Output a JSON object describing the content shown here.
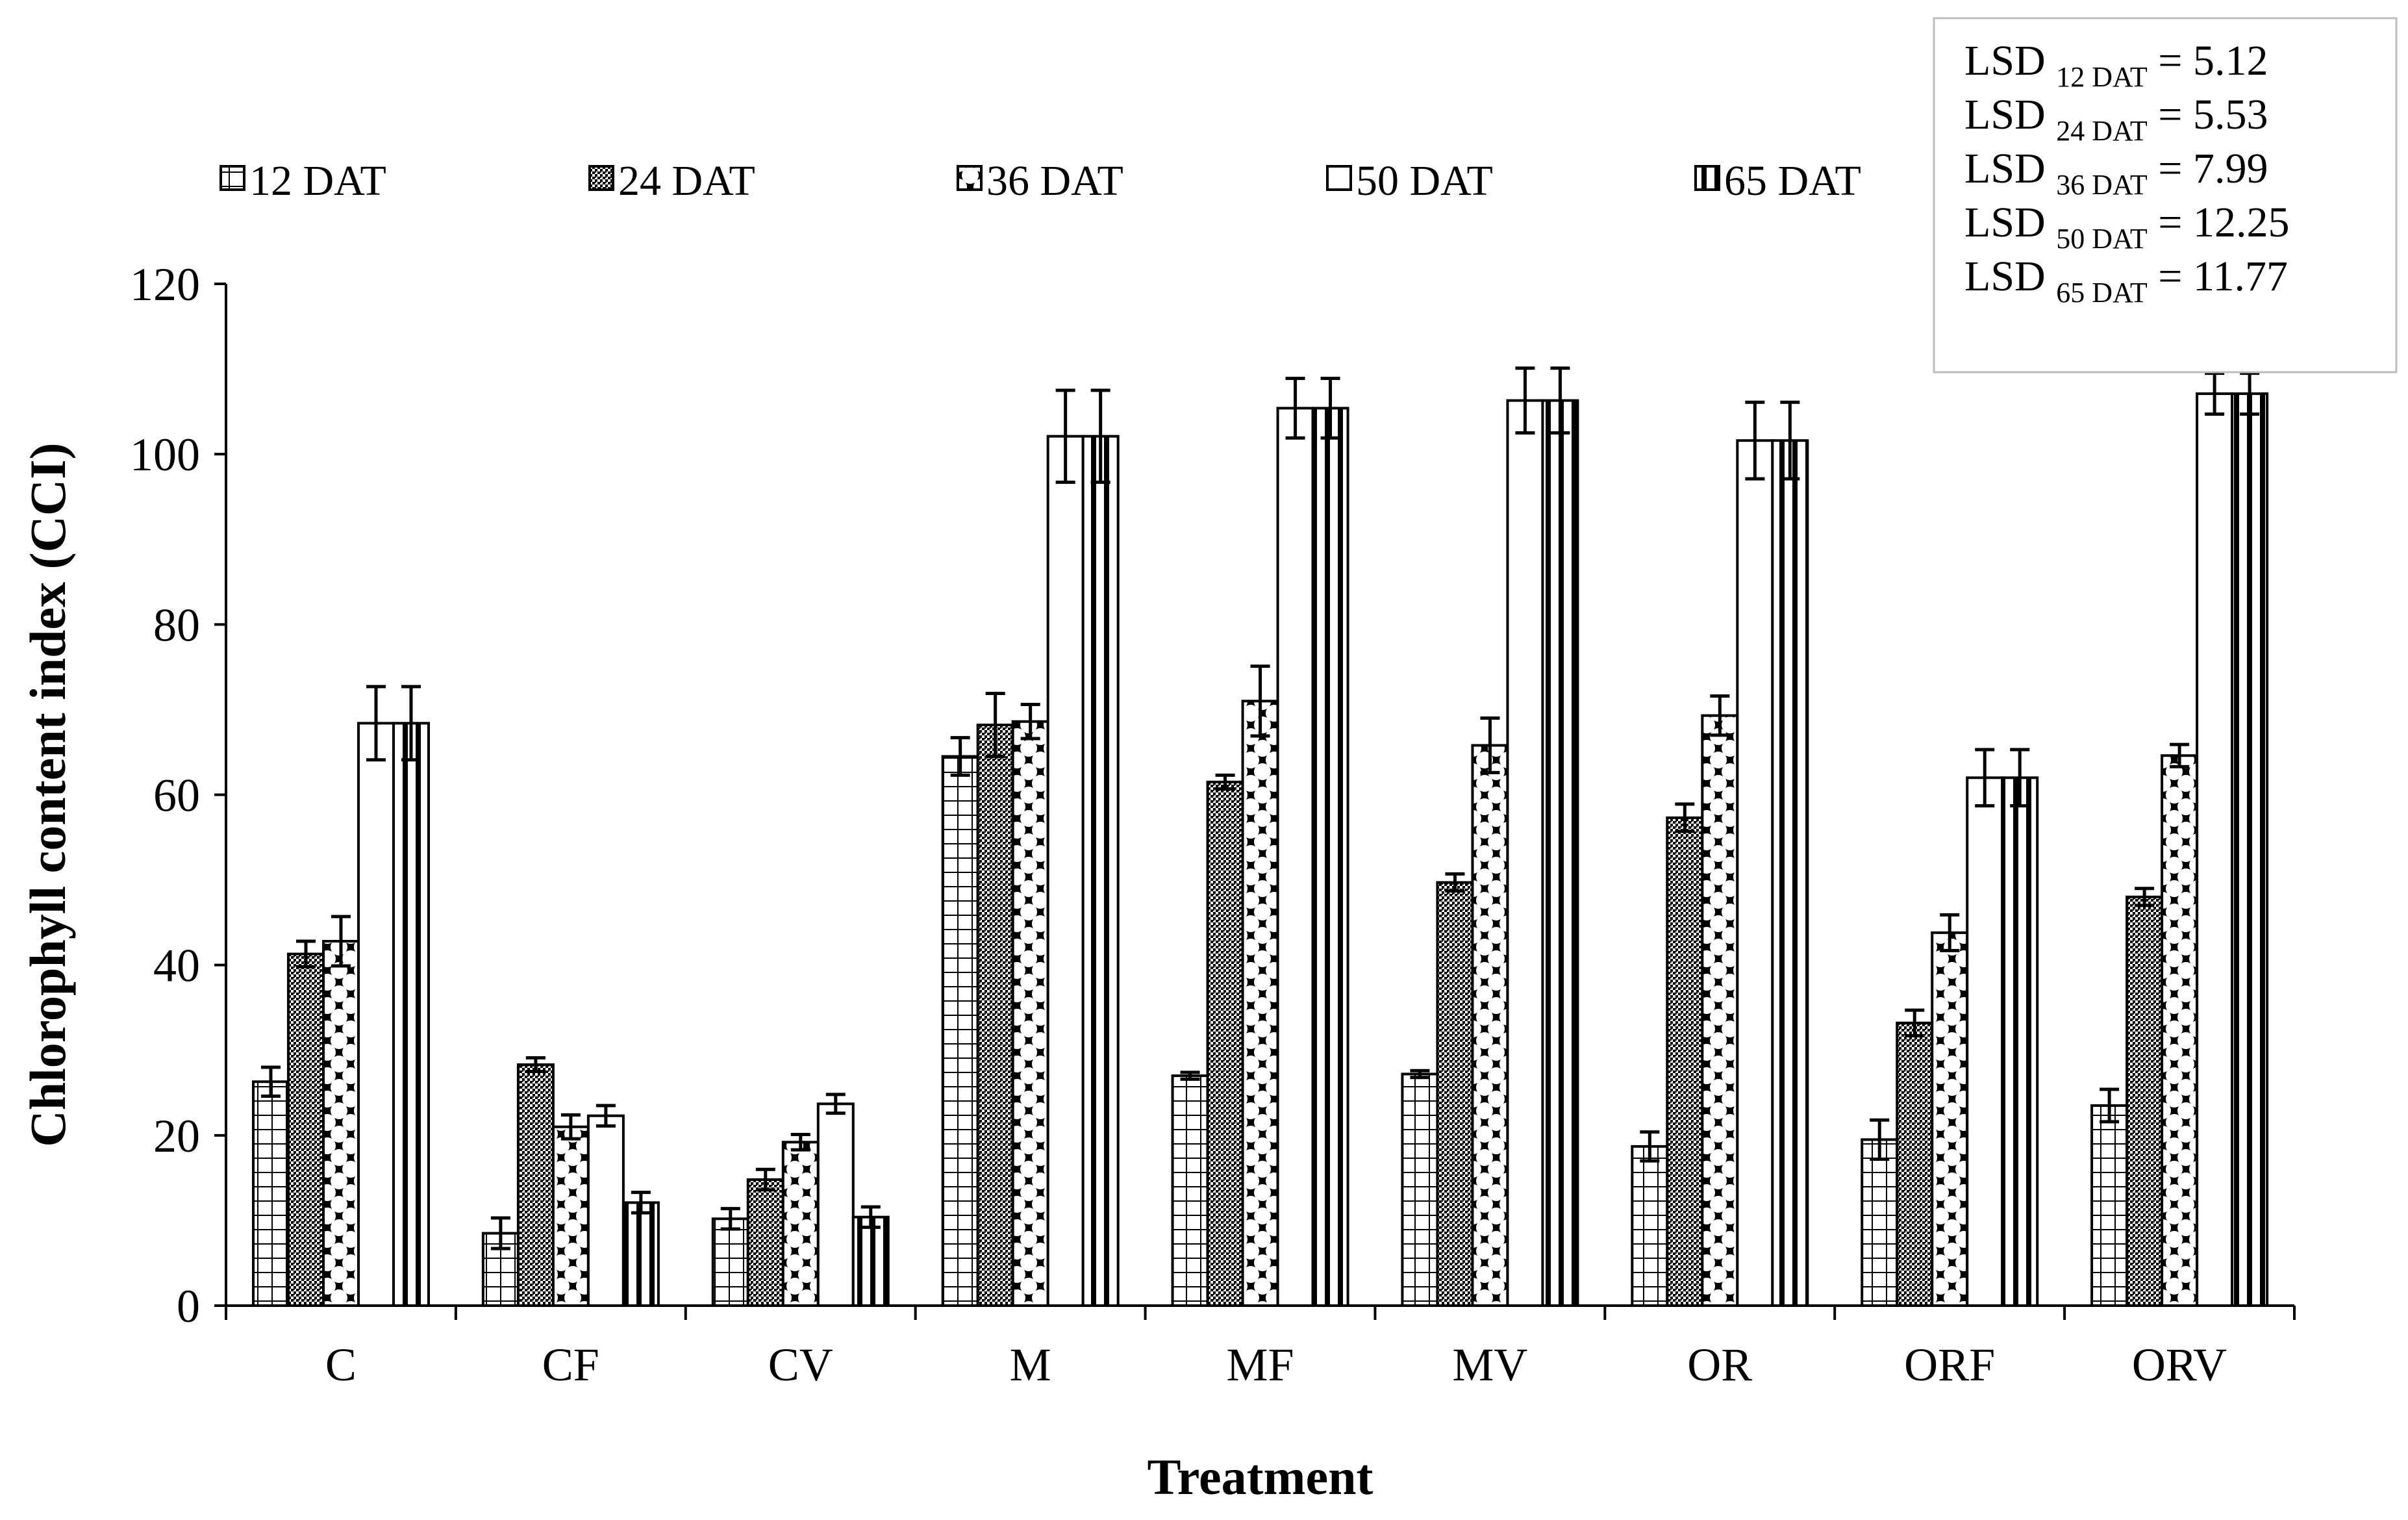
{
  "chart_data": {
    "type": "bar",
    "title": "",
    "xlabel": "Treatment",
    "ylabel": "Chlorophyll content index (CCI)",
    "ylim": [
      0,
      120
    ],
    "yticks": [
      0,
      20,
      40,
      60,
      80,
      100,
      120
    ],
    "grid": false,
    "legend_position": "top",
    "categories": [
      "C",
      "CF",
      "CV",
      "M",
      "MF",
      "MV",
      "OR",
      "ORF",
      "ORV"
    ],
    "series": [
      {
        "name": "12 DAT",
        "pattern": "grid",
        "values": [
          26.3,
          8.5,
          10.2,
          64.5,
          27.0,
          27.2,
          18.7,
          19.5,
          23.5
        ],
        "errors": [
          1.7,
          1.8,
          1.2,
          2.2,
          0.4,
          0.4,
          1.7,
          2.3,
          1.9
        ]
      },
      {
        "name": "24 DAT",
        "pattern": "dense-dots",
        "values": [
          41.3,
          28.3,
          14.8,
          68.2,
          61.5,
          49.7,
          57.3,
          33.2,
          48.0
        ],
        "errors": [
          1.5,
          0.8,
          1.2,
          3.7,
          0.8,
          1.0,
          1.6,
          1.5,
          1.0
        ]
      },
      {
        "name": "36 DAT",
        "pattern": "diamonds",
        "values": [
          42.8,
          21.0,
          19.2,
          68.6,
          71.0,
          65.8,
          69.3,
          43.8,
          64.6
        ],
        "errors": [
          2.9,
          1.4,
          0.9,
          2.0,
          4.1,
          3.2,
          2.3,
          2.1,
          1.3
        ]
      },
      {
        "name": "50 DAT",
        "pattern": "solid-white",
        "values": [
          68.4,
          22.3,
          23.7,
          102.1,
          105.4,
          106.3,
          101.6,
          62.0,
          107.1
        ],
        "errors": [
          4.3,
          1.2,
          1.1,
          5.4,
          3.5,
          3.8,
          4.5,
          3.3,
          2.4
        ]
      },
      {
        "name": "65 DAT",
        "pattern": "vertical-stripes",
        "values": [
          68.4,
          12.1,
          10.4,
          102.1,
          105.4,
          106.3,
          101.6,
          62.0,
          107.1
        ],
        "errors": [
          4.3,
          1.2,
          1.2,
          5.4,
          3.5,
          3.8,
          4.5,
          3.3,
          2.4
        ]
      }
    ],
    "annotation": {
      "items": [
        {
          "prefix": "LSD",
          "sub": "12 DAT",
          "value": "= 5.12"
        },
        {
          "prefix": "LSD",
          "sub": "24 DAT",
          "value": "= 5.53"
        },
        {
          "prefix": "LSD",
          "sub": "36 DAT",
          "value": "= 7.99"
        },
        {
          "prefix": "LSD",
          "sub": "50 DAT",
          "value": "= 12.25"
        },
        {
          "prefix": "LSD",
          "sub": "65 DAT",
          "value": "= 11.77"
        }
      ]
    }
  }
}
